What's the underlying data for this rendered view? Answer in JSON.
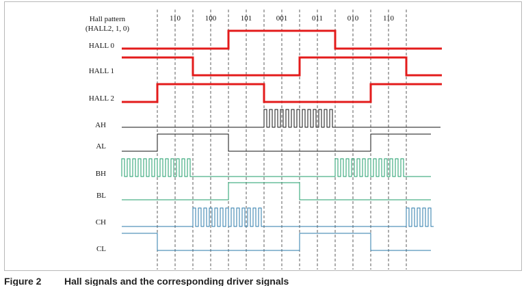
{
  "header": {
    "line1": "Hall pattern",
    "line2": "(HALL2, 1, 0)"
  },
  "patterns": [
    "110",
    "100",
    "101",
    "001",
    "011",
    "010",
    "110"
  ],
  "signals": [
    {
      "name": "HALL 0",
      "color": "#e31b1b",
      "kind": "hall"
    },
    {
      "name": "HALL 1",
      "color": "#e31b1b",
      "kind": "hall"
    },
    {
      "name": "HALL 2",
      "color": "#e31b1b",
      "kind": "hall"
    },
    {
      "name": "AH",
      "color": "#111111",
      "kind": "drive"
    },
    {
      "name": "AL",
      "color": "#111111",
      "kind": "drive"
    },
    {
      "name": "BH",
      "color": "#1e9e6a",
      "kind": "drive"
    },
    {
      "name": "BL",
      "color": "#1e9e6a",
      "kind": "drive"
    },
    {
      "name": "CH",
      "color": "#2a78a8",
      "kind": "drive"
    },
    {
      "name": "CL",
      "color": "#2a78a8",
      "kind": "drive"
    }
  ],
  "caption": {
    "number": "Figure 2",
    "title": "Hall signals and the corresponding driver signals"
  }
}
